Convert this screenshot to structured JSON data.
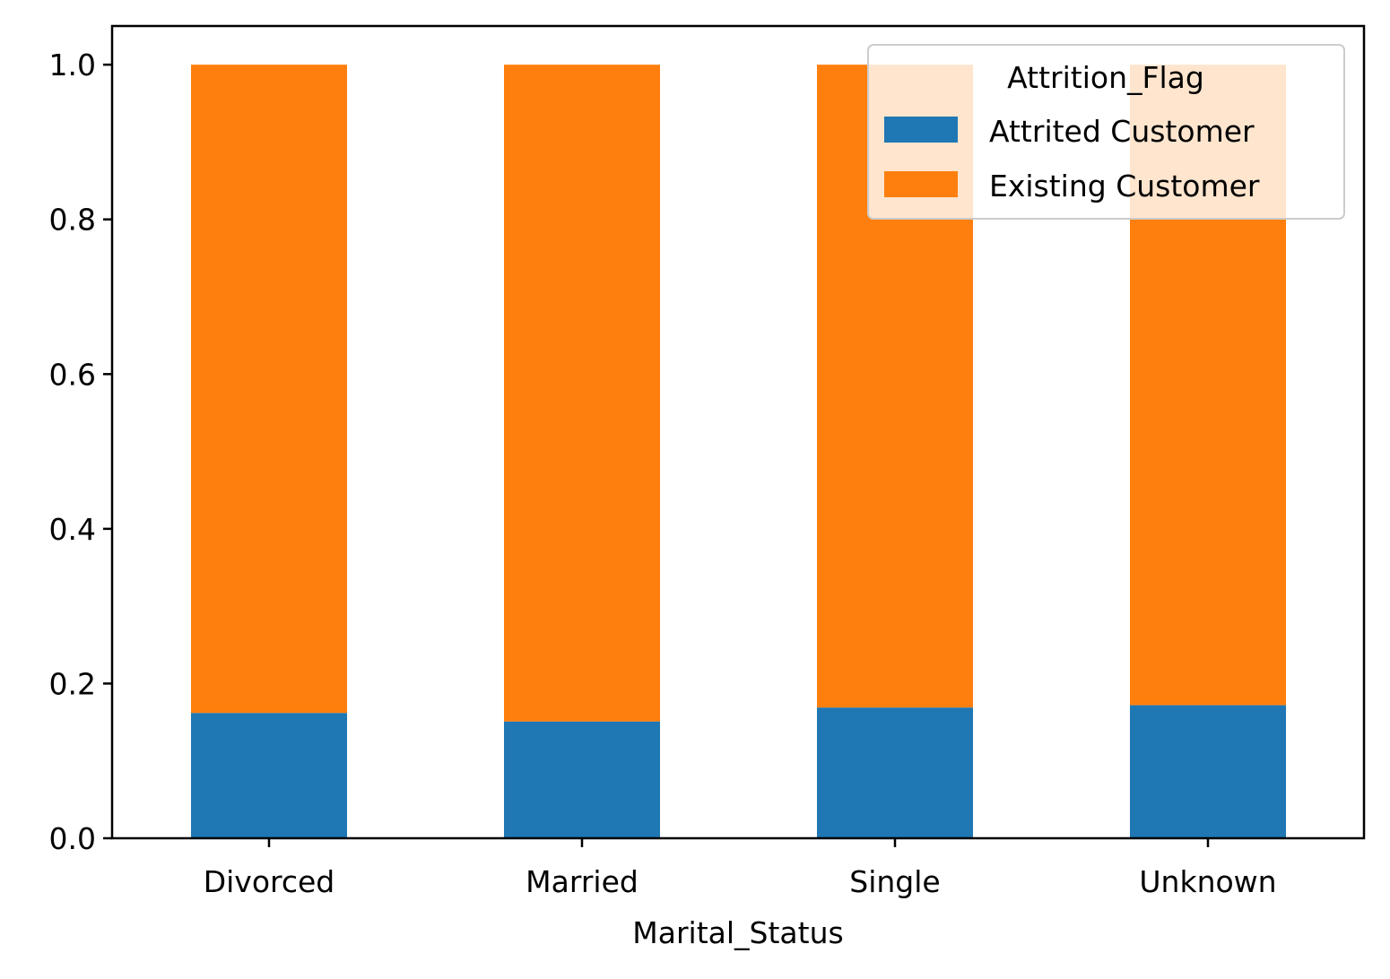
{
  "chart_data": {
    "type": "bar",
    "stacked": true,
    "categories": [
      "Divorced",
      "Married",
      "Single",
      "Unknown"
    ],
    "series": [
      {
        "name": "Attrited Customer",
        "values": [
          0.162,
          0.151,
          0.169,
          0.172
        ],
        "color": "#1f77b4"
      },
      {
        "name": "Existing Customer",
        "values": [
          0.838,
          0.849,
          0.831,
          0.828
        ],
        "color": "#ff7f0e"
      }
    ],
    "xlabel": "Marital_Status",
    "ylabel": "",
    "ylim": [
      0,
      1.05
    ],
    "yticks": [
      "0.0",
      "0.2",
      "0.4",
      "0.6",
      "0.8",
      "1.0"
    ],
    "legend": {
      "title": "Attrition_Flag",
      "placement": "top-right"
    },
    "grid": false
  }
}
